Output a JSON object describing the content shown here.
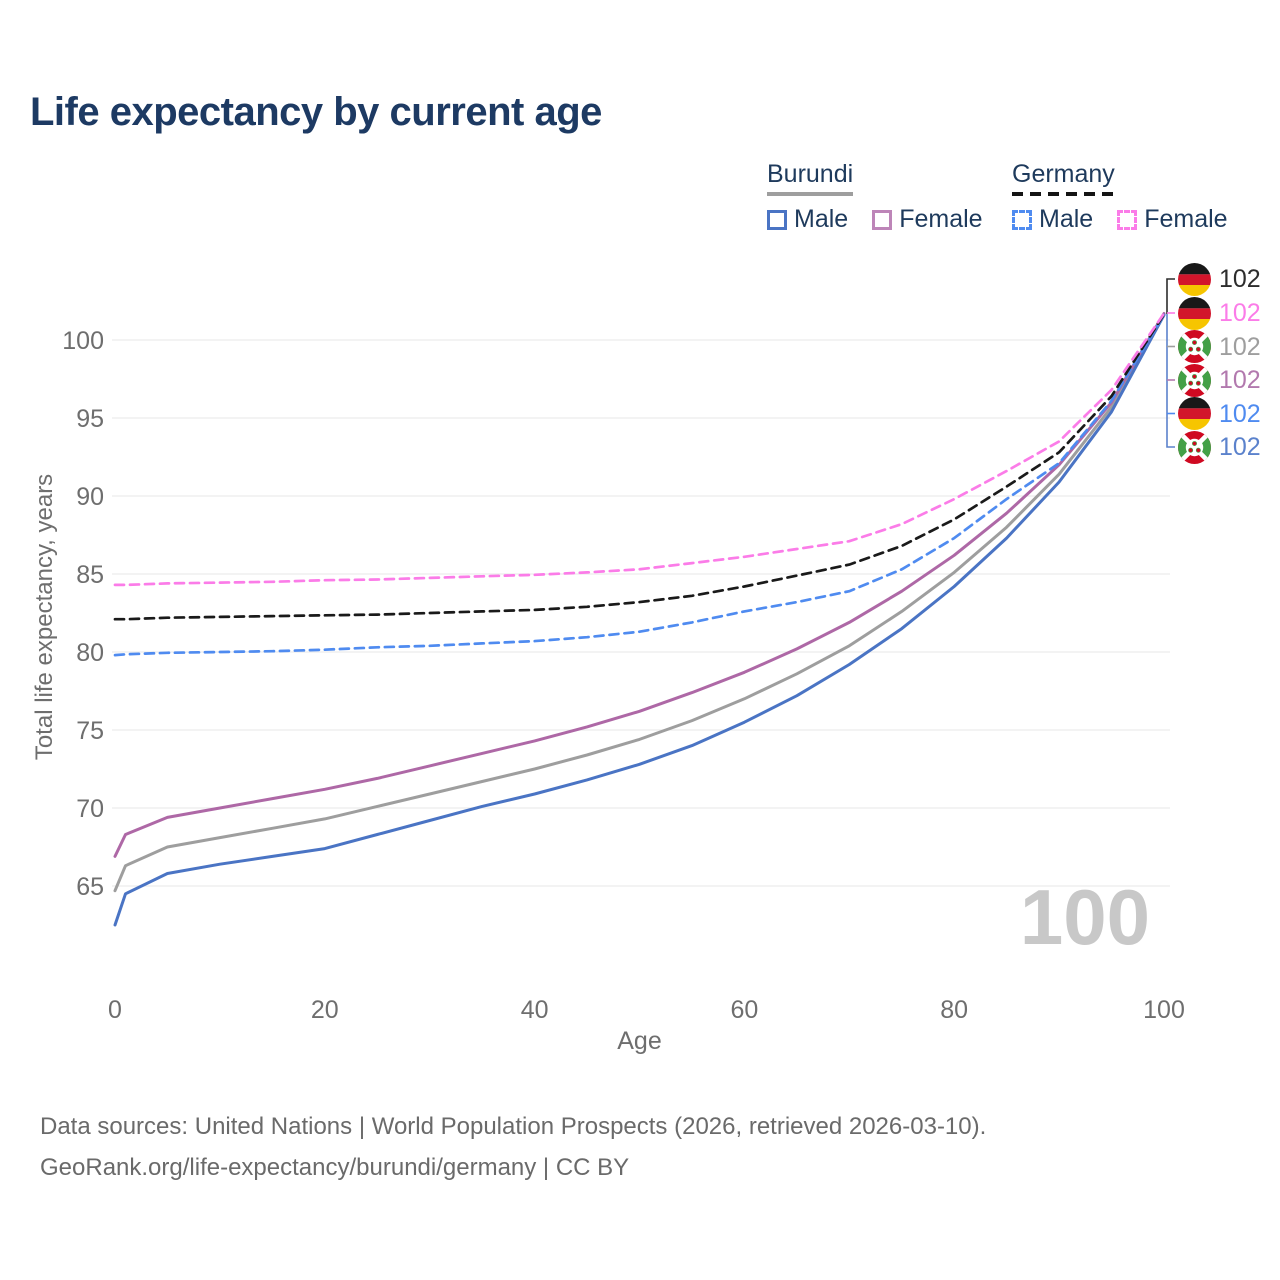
{
  "chart": {
    "title": "Life expectancy by current age",
    "watermark": "100",
    "x_axis": {
      "label": "Age",
      "ticks": [
        0,
        20,
        40,
        60,
        80,
        100
      ]
    },
    "y_axis": {
      "label": "Total life expectancy, years",
      "ticks": [
        65,
        70,
        75,
        80,
        85,
        90,
        95,
        100
      ]
    },
    "colors": {
      "title_text": "#1d3a63",
      "legend_text": "#1e3a5c",
      "axis_text": "#6e6e6e",
      "gridline": "#ececec",
      "watermark": "#c8c8c8",
      "footer_text": "#6a6a6a"
    }
  },
  "legend": {
    "groups": [
      {
        "name": "Burundi",
        "rule_color": "#9e9e9e",
        "rule_dashed": false,
        "items": [
          {
            "label": "Male",
            "color": "#4a74c4",
            "dashed": false
          },
          {
            "label": "Female",
            "color": "#bd85b8",
            "dashed": false
          }
        ]
      },
      {
        "name": "Germany",
        "rule_color": "#141414",
        "rule_dashed": true,
        "items": [
          {
            "label": "Male",
            "color": "#4f8bf0",
            "dashed": true
          },
          {
            "label": "Female",
            "color": "#fb7ce8",
            "dashed": true
          }
        ]
      }
    ]
  },
  "chart_data": {
    "type": "line",
    "title": "Life expectancy by current age",
    "xlabel": "Age",
    "ylabel": "Total life expectancy, years",
    "xlim": [
      0,
      100
    ],
    "ylim": [
      62,
      103
    ],
    "grid": "horizontal",
    "x": [
      0,
      1,
      5,
      10,
      15,
      20,
      25,
      30,
      35,
      40,
      45,
      50,
      55,
      60,
      65,
      70,
      75,
      80,
      85,
      90,
      95,
      100
    ],
    "series": [
      {
        "name": "Burundi Both sexes",
        "country": "burundi",
        "color": "#9e9e9e",
        "dashed": false,
        "values": [
          64.7,
          66.3,
          67.5,
          68.1,
          68.7,
          69.3,
          70.1,
          70.9,
          71.7,
          72.5,
          73.4,
          74.4,
          75.6,
          77.0,
          78.6,
          80.4,
          82.6,
          85.1,
          88.0,
          91.4,
          95.7,
          101.65
        ]
      },
      {
        "name": "Burundi Female",
        "country": "burundi",
        "color": "#ae68a6",
        "dashed": false,
        "values": [
          66.9,
          68.3,
          69.4,
          70.0,
          70.6,
          71.2,
          71.9,
          72.7,
          73.5,
          74.3,
          75.2,
          76.2,
          77.4,
          78.7,
          80.2,
          81.9,
          83.9,
          86.2,
          88.9,
          92.0,
          96.0,
          101.7
        ]
      },
      {
        "name": "Burundi Male",
        "country": "burundi",
        "color": "#4a74c4",
        "dashed": false,
        "values": [
          62.5,
          64.5,
          65.8,
          66.4,
          66.9,
          67.4,
          68.3,
          69.2,
          70.1,
          70.9,
          71.8,
          72.8,
          74.0,
          75.5,
          77.2,
          79.2,
          81.5,
          84.2,
          87.3,
          90.9,
          95.4,
          101.6
        ]
      },
      {
        "name": "Germany Male",
        "country": "germany",
        "color": "#4f8bf0",
        "dashed": true,
        "values": [
          79.8,
          79.85,
          79.95,
          80.0,
          80.05,
          80.15,
          80.3,
          80.4,
          80.55,
          80.7,
          80.95,
          81.3,
          81.9,
          82.6,
          83.2,
          83.9,
          85.3,
          87.3,
          89.8,
          92.1,
          96.1,
          101.6
        ]
      },
      {
        "name": "Germany Both sexes",
        "country": "germany",
        "color": "#1a1a1a",
        "dashed": true,
        "values": [
          82.1,
          82.1,
          82.2,
          82.25,
          82.3,
          82.35,
          82.4,
          82.5,
          82.6,
          82.7,
          82.9,
          83.2,
          83.6,
          84.2,
          84.9,
          85.6,
          86.8,
          88.5,
          90.6,
          92.8,
          96.4,
          101.65
        ]
      },
      {
        "name": "Germany Female",
        "country": "germany",
        "color": "#fb7ce8",
        "dashed": true,
        "values": [
          84.3,
          84.3,
          84.4,
          84.45,
          84.5,
          84.6,
          84.65,
          84.75,
          84.85,
          84.95,
          85.1,
          85.3,
          85.7,
          86.1,
          86.6,
          87.1,
          88.2,
          89.8,
          91.6,
          93.5,
          96.8,
          101.7
        ]
      }
    ]
  },
  "value_labels": {
    "rows": [
      {
        "flag": "germany",
        "value": "102",
        "color": "#2d2d2d",
        "series": "Germany Both sexes"
      },
      {
        "flag": "germany",
        "value": "102",
        "color": "#fb7ce8",
        "series": "Germany Female"
      },
      {
        "flag": "burundi",
        "value": "102",
        "color": "#9e9e9e",
        "series": "Burundi Both sexes"
      },
      {
        "flag": "burundi",
        "value": "102",
        "color": "#b279ae",
        "series": "Burundi Female"
      },
      {
        "flag": "germany",
        "value": "102",
        "color": "#4f8bf0",
        "series": "Germany Male"
      },
      {
        "flag": "burundi",
        "value": "102",
        "color": "#5b82cc",
        "series": "Burundi Male"
      }
    ]
  },
  "footer": {
    "line1": "Data sources: United Nations | World Population Prospects (2026, retrieved 2026-03-10).",
    "line2": "GeoRank.org/life-expectancy/burundi/germany | CC BY"
  }
}
